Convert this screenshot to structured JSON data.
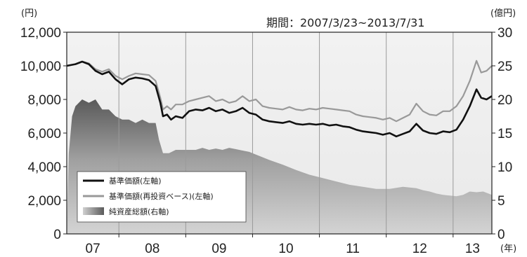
{
  "chart_data": {
    "type": "line",
    "period_label": "期間：2007/3/23~2013/7/31",
    "left_axis_unit": "(円)",
    "right_axis_unit": "(億円)",
    "x_axis_unit": "(年)",
    "x_categories": [
      "07",
      "08",
      "09",
      "10",
      "11",
      "12",
      "13"
    ],
    "x_range": [
      2007.22,
      2013.58
    ],
    "y_left_range": [
      0,
      12000
    ],
    "y_left_ticks": [
      "0",
      "2,000",
      "4,000",
      "6,000",
      "8,000",
      "10,000",
      "12,000"
    ],
    "y_right_range": [
      0,
      30
    ],
    "y_right_ticks": [
      "0",
      "5",
      "10",
      "15",
      "20",
      "25",
      "30"
    ],
    "grid": "vertical year separators",
    "legend_placement": "bottom-left",
    "series": [
      {
        "name": "基準価額(左軸)",
        "axis": "left",
        "color": "#111111",
        "x": [
          2007.22,
          2007.35,
          2007.45,
          2007.55,
          2007.65,
          2007.75,
          2007.85,
          2007.95,
          2008.05,
          2008.15,
          2008.25,
          2008.35,
          2008.45,
          2008.55,
          2008.62,
          2008.66,
          2008.72,
          2008.78,
          2008.85,
          2008.95,
          2009.05,
          2009.15,
          2009.25,
          2009.35,
          2009.45,
          2009.55,
          2009.65,
          2009.75,
          2009.85,
          2009.95,
          2010.05,
          2010.15,
          2010.25,
          2010.35,
          2010.45,
          2010.55,
          2010.65,
          2010.75,
          2010.85,
          2010.95,
          2011.05,
          2011.15,
          2011.25,
          2011.35,
          2011.45,
          2011.55,
          2011.65,
          2011.75,
          2011.85,
          2011.95,
          2012.05,
          2012.15,
          2012.25,
          2012.35,
          2012.45,
          2012.55,
          2012.65,
          2012.75,
          2012.85,
          2012.95,
          2013.05,
          2013.15,
          2013.25,
          2013.35,
          2013.42,
          2013.5,
          2013.58
        ],
        "values": [
          10000,
          10100,
          10250,
          10100,
          9700,
          9500,
          9650,
          9200,
          8900,
          9200,
          9300,
          9250,
          9150,
          8800,
          7800,
          7000,
          7100,
          6800,
          7000,
          6900,
          7300,
          7400,
          7350,
          7500,
          7300,
          7400,
          7200,
          7300,
          7500,
          7200,
          7100,
          6800,
          6700,
          6650,
          6600,
          6700,
          6550,
          6500,
          6550,
          6500,
          6550,
          6450,
          6500,
          6400,
          6350,
          6200,
          6100,
          6050,
          6000,
          5900,
          6000,
          5800,
          5950,
          6100,
          6550,
          6150,
          6000,
          5950,
          6100,
          6050,
          6200,
          6800,
          7600,
          8600,
          8100,
          8000,
          8200
        ]
      },
      {
        "name": "基準価額(再投資ベース)(左軸)",
        "axis": "left",
        "color": "#999999",
        "x": [
          2007.22,
          2007.35,
          2007.45,
          2007.55,
          2007.65,
          2007.75,
          2007.85,
          2007.95,
          2008.05,
          2008.15,
          2008.25,
          2008.35,
          2008.45,
          2008.55,
          2008.62,
          2008.66,
          2008.72,
          2008.78,
          2008.85,
          2008.95,
          2009.05,
          2009.15,
          2009.25,
          2009.35,
          2009.45,
          2009.55,
          2009.65,
          2009.75,
          2009.85,
          2009.95,
          2010.05,
          2010.15,
          2010.25,
          2010.35,
          2010.45,
          2010.55,
          2010.65,
          2010.75,
          2010.85,
          2010.95,
          2011.05,
          2011.15,
          2011.25,
          2011.35,
          2011.45,
          2011.55,
          2011.65,
          2011.75,
          2011.85,
          2011.95,
          2012.05,
          2012.15,
          2012.25,
          2012.35,
          2012.45,
          2012.55,
          2012.65,
          2012.75,
          2012.85,
          2012.95,
          2013.05,
          2013.15,
          2013.25,
          2013.35,
          2013.42,
          2013.5,
          2013.58
        ],
        "values": [
          10000,
          10100,
          10250,
          10150,
          9800,
          9650,
          9800,
          9400,
          9200,
          9400,
          9550,
          9500,
          9450,
          9100,
          8100,
          7400,
          7600,
          7400,
          7700,
          7700,
          7900,
          8000,
          8100,
          8200,
          7900,
          8000,
          7800,
          7900,
          8200,
          7900,
          8000,
          7600,
          7500,
          7450,
          7400,
          7550,
          7400,
          7350,
          7450,
          7400,
          7500,
          7450,
          7400,
          7350,
          7300,
          7100,
          7000,
          6950,
          6900,
          6800,
          6900,
          6700,
          6900,
          7100,
          7750,
          7300,
          7100,
          7050,
          7300,
          7300,
          7600,
          8200,
          9100,
          10300,
          9600,
          9700,
          10000
        ]
      },
      {
        "name": "純資産総額(右軸)",
        "axis": "right",
        "type": "area",
        "color": "#888888",
        "x": [
          2007.22,
          2007.25,
          2007.3,
          2007.35,
          2007.45,
          2007.55,
          2007.65,
          2007.75,
          2007.85,
          2007.95,
          2008.05,
          2008.15,
          2008.25,
          2008.35,
          2008.45,
          2008.55,
          2008.6,
          2008.66,
          2008.75,
          2008.85,
          2008.95,
          2009.05,
          2009.15,
          2009.25,
          2009.35,
          2009.45,
          2009.55,
          2009.65,
          2009.75,
          2009.85,
          2009.95,
          2010.05,
          2010.25,
          2010.45,
          2010.65,
          2010.85,
          2011.05,
          2011.25,
          2011.45,
          2011.65,
          2011.85,
          2012.05,
          2012.25,
          2012.45,
          2012.55,
          2012.65,
          2012.75,
          2012.85,
          2012.95,
          2013.05,
          2013.15,
          2013.25,
          2013.35,
          2013.45,
          2013.58
        ],
        "values": [
          0,
          12,
          17.5,
          19,
          20,
          19.5,
          20,
          18.5,
          18.5,
          17.5,
          17,
          17,
          16.5,
          17,
          16.5,
          16.5,
          14,
          12,
          12,
          12.5,
          12.5,
          12.5,
          12.5,
          12.8,
          12.5,
          12.7,
          12.5,
          12.8,
          12.6,
          12.4,
          12.2,
          11.8,
          11,
          10.3,
          9.5,
          8.8,
          8.3,
          7.8,
          7.3,
          7,
          6.7,
          6.7,
          7,
          6.8,
          6.5,
          6.3,
          6,
          5.8,
          5.7,
          5.6,
          5.8,
          6.3,
          6.2,
          6.3,
          5.8
        ]
      }
    ]
  }
}
